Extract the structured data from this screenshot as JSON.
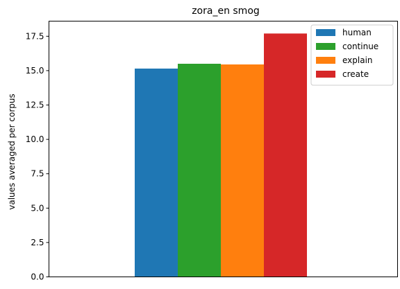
{
  "chart_data": {
    "type": "bar",
    "title": "zora_en smog",
    "xlabel": "",
    "ylabel": "values averaged per corpus",
    "ylim": [
      0,
      18.6
    ],
    "yticks": [
      0.0,
      2.5,
      5.0,
      7.5,
      10.0,
      12.5,
      15.0,
      17.5
    ],
    "ytick_labels": [
      "0.0",
      "2.5",
      "5.0",
      "7.5",
      "10.0",
      "12.5",
      "15.0",
      "17.5"
    ],
    "grid": false,
    "legend_position": "top-right",
    "series": [
      {
        "name": "human",
        "value": 15.15,
        "color": "#1f77b4"
      },
      {
        "name": "continue",
        "value": 15.5,
        "color": "#2ca02c"
      },
      {
        "name": "explain",
        "value": 15.45,
        "color": "#ff7f0e"
      },
      {
        "name": "create",
        "value": 17.7,
        "color": "#d62728"
      }
    ]
  }
}
